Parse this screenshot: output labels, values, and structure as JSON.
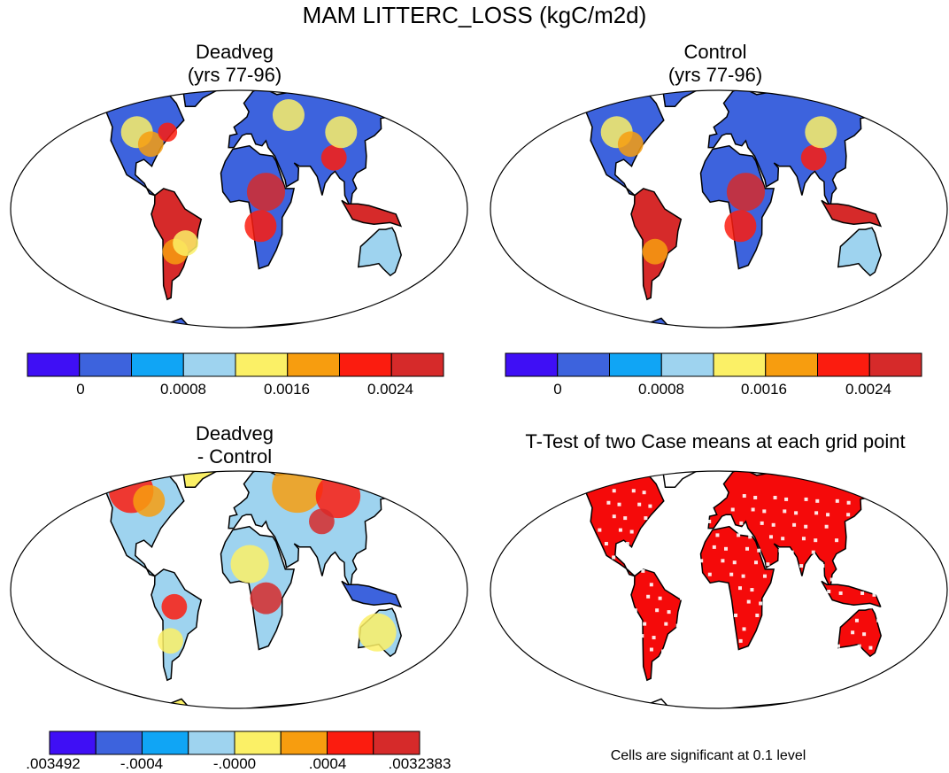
{
  "title": "MAM LITTERC_LOSS (kgC/m2d)",
  "panels": [
    {
      "title_line1": "Deadveg",
      "title_line2": "(yrs 77-96)"
    },
    {
      "title_line1": "Control",
      "title_line2": "(yrs 77-96)"
    },
    {
      "title_line1": "Deadveg",
      "title_line2": "- Control"
    },
    {
      "title_line1": "T-Test of two Case means at each grid point",
      "title_line2": ""
    }
  ],
  "colorbar_main": {
    "colors": [
      "#3f0ff5",
      "#3d63dd",
      "#10a5f5",
      "#9ed3ef",
      "#fbf066",
      "#f79d0f",
      "#fb1c0f",
      "#d62a2a"
    ],
    "labels": [
      "0",
      "0.0008",
      "0.0016",
      "0.0024"
    ]
  },
  "colorbar_diff": {
    "colors": [
      "#3f0ff5",
      "#3d63dd",
      "#10a5f5",
      "#9ed3ef",
      "#fbf066",
      "#f79d0f",
      "#fb1c0f",
      "#d62a2a"
    ],
    "labels": [
      ".003492",
      "-.0004",
      "-.0000",
      ".0004",
      ".0032383"
    ]
  },
  "significance_note": "Cells are significant at 0.1 level",
  "colors": {
    "ocean": "#ffffff",
    "coast": "#000000",
    "significant": "#f50a0a"
  }
}
